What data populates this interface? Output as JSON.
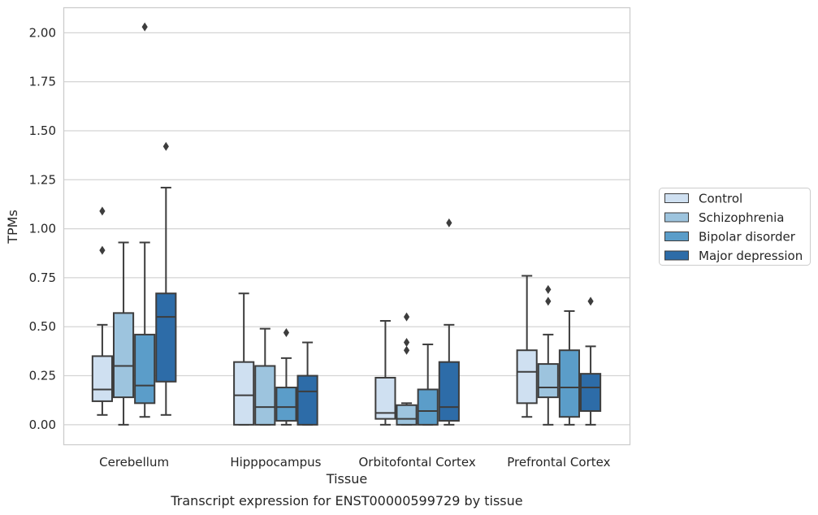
{
  "chart_data": {
    "type": "box",
    "xlabel": "Tissue",
    "ylabel": "TPMs",
    "caption": "Transcript expression for ENST00000599729 by tissue",
    "ylim": [
      -0.1,
      2.13
    ],
    "yticks": [
      "0.00",
      "0.25",
      "0.50",
      "0.75",
      "1.00",
      "1.25",
      "1.50",
      "1.75",
      "2.00"
    ],
    "grid": "horizontal",
    "legend_placement": "right",
    "categories": [
      "Cerebellum",
      "Hipppocampus",
      "Orbitofontal Cortex",
      "Prefrontal Cortex"
    ],
    "series": [
      {
        "name": "Control",
        "color": "#cfe0f1",
        "boxes": [
          {
            "whislo": 0.05,
            "q1": 0.12,
            "med": 0.18,
            "q3": 0.35,
            "whishi": 0.51,
            "fliers": [
              0.89,
              1.09
            ]
          },
          {
            "whislo": 0.0,
            "q1": 0.0,
            "med": 0.15,
            "q3": 0.32,
            "whishi": 0.67,
            "fliers": []
          },
          {
            "whislo": 0.0,
            "q1": 0.03,
            "med": 0.06,
            "q3": 0.24,
            "whishi": 0.53,
            "fliers": []
          },
          {
            "whislo": 0.04,
            "q1": 0.11,
            "med": 0.27,
            "q3": 0.38,
            "whishi": 0.76,
            "fliers": []
          }
        ]
      },
      {
        "name": "Schizophrenia",
        "color": "#9dc4de",
        "boxes": [
          {
            "whislo": 0.0,
            "q1": 0.14,
            "med": 0.3,
            "q3": 0.57,
            "whishi": 0.93,
            "fliers": []
          },
          {
            "whislo": 0.0,
            "q1": 0.0,
            "med": 0.09,
            "q3": 0.3,
            "whishi": 0.49,
            "fliers": []
          },
          {
            "whislo": 0.0,
            "q1": 0.0,
            "med": 0.03,
            "q3": 0.1,
            "whishi": 0.11,
            "fliers": [
              0.38,
              0.42,
              0.55
            ]
          },
          {
            "whislo": 0.0,
            "q1": 0.14,
            "med": 0.19,
            "q3": 0.31,
            "whishi": 0.46,
            "fliers": [
              0.63,
              0.69
            ]
          }
        ]
      },
      {
        "name": "Bipolar disorder",
        "color": "#5b9dc9",
        "boxes": [
          {
            "whislo": 0.04,
            "q1": 0.11,
            "med": 0.2,
            "q3": 0.46,
            "whishi": 0.93,
            "fliers": [
              2.03
            ]
          },
          {
            "whislo": 0.0,
            "q1": 0.02,
            "med": 0.09,
            "q3": 0.19,
            "whishi": 0.34,
            "fliers": [
              0.47
            ]
          },
          {
            "whislo": 0.0,
            "q1": 0.0,
            "med": 0.07,
            "q3": 0.18,
            "whishi": 0.41,
            "fliers": []
          },
          {
            "whislo": 0.0,
            "q1": 0.04,
            "med": 0.19,
            "q3": 0.38,
            "whishi": 0.58,
            "fliers": []
          }
        ]
      },
      {
        "name": "Major depression",
        "color": "#2d6ca8",
        "boxes": [
          {
            "whislo": 0.05,
            "q1": 0.22,
            "med": 0.55,
            "q3": 0.67,
            "whishi": 1.21,
            "fliers": [
              1.42
            ]
          },
          {
            "whislo": 0.0,
            "q1": 0.0,
            "med": 0.17,
            "q3": 0.25,
            "whishi": 0.42,
            "fliers": []
          },
          {
            "whislo": 0.0,
            "q1": 0.02,
            "med": 0.09,
            "q3": 0.32,
            "whishi": 0.51,
            "fliers": [
              1.03
            ]
          },
          {
            "whislo": 0.0,
            "q1": 0.07,
            "med": 0.19,
            "q3": 0.26,
            "whishi": 0.4,
            "fliers": [
              0.63
            ]
          }
        ]
      }
    ]
  }
}
